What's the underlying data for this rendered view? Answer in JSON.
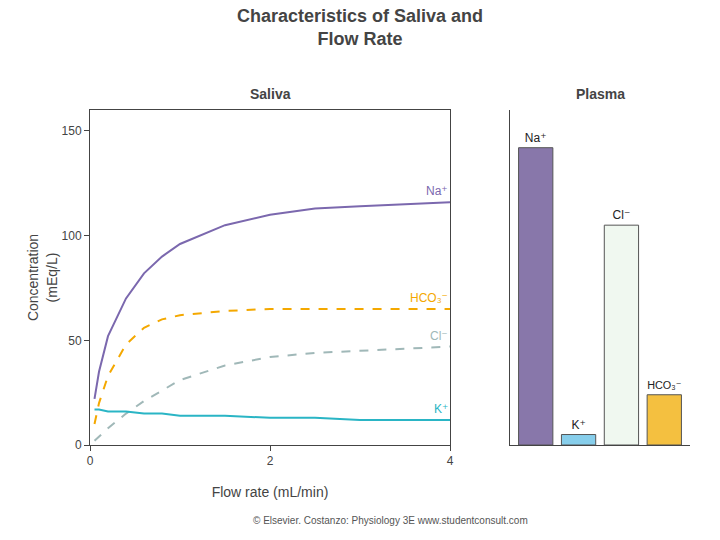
{
  "title": "Characteristics of Saliva and\nFlow Rate",
  "annotations": [
    "© Elsevier. Costanzo: Physiology 3E www.studentconsult.com"
  ],
  "chart_data": [
    {
      "type": "line",
      "title": "Saliva",
      "x_label": "Flow rate (mL/min)",
      "y_label": "Concentration\n(mEq/L)",
      "x": [
        0.05,
        0.1,
        0.2,
        0.4,
        0.6,
        0.8,
        1.0,
        1.5,
        2.0,
        2.5,
        3.0,
        3.5,
        4.0
      ],
      "series": [
        {
          "name": "Na⁺",
          "color": "#7b68ae",
          "line_style": "solid",
          "values": [
            22,
            35,
            52,
            70,
            82,
            90,
            96,
            105,
            110,
            113,
            114,
            115,
            116
          ]
        },
        {
          "name": "HCO₃⁻",
          "color": "#f4a800",
          "line_style": "dashed",
          "values": [
            10,
            20,
            33,
            48,
            56,
            60,
            62,
            64,
            65,
            65,
            65,
            65,
            65
          ]
        },
        {
          "name": "Cl⁻",
          "color": "#a0b8b8",
          "line_style": "dashed",
          "values": [
            2,
            4,
            8,
            15,
            21,
            26,
            31,
            38,
            42,
            44,
            45,
            46,
            47
          ]
        },
        {
          "name": "K⁺",
          "color": "#2ab5c5",
          "line_style": "solid",
          "values": [
            17,
            17,
            16,
            16,
            15,
            15,
            14,
            14,
            13,
            13,
            12,
            12,
            12
          ]
        }
      ],
      "xlim": [
        0,
        4
      ],
      "xticks": [
        0,
        2,
        4
      ],
      "ylim": [
        0,
        160
      ],
      "yticks": [
        0,
        50,
        100,
        150
      ],
      "grid": false
    },
    {
      "type": "bar",
      "title": "Plasma",
      "categories": [
        "Na⁺",
        "K⁺",
        "Cl⁻",
        "HCO₃⁻"
      ],
      "values": [
        142,
        5,
        105,
        24
      ],
      "colors": [
        "#8877aa",
        "#87ceeb",
        "#f0f8f0",
        "#f4c040"
      ],
      "ylim": [
        0,
        160
      ],
      "tick_labels": false,
      "grid": false
    }
  ]
}
